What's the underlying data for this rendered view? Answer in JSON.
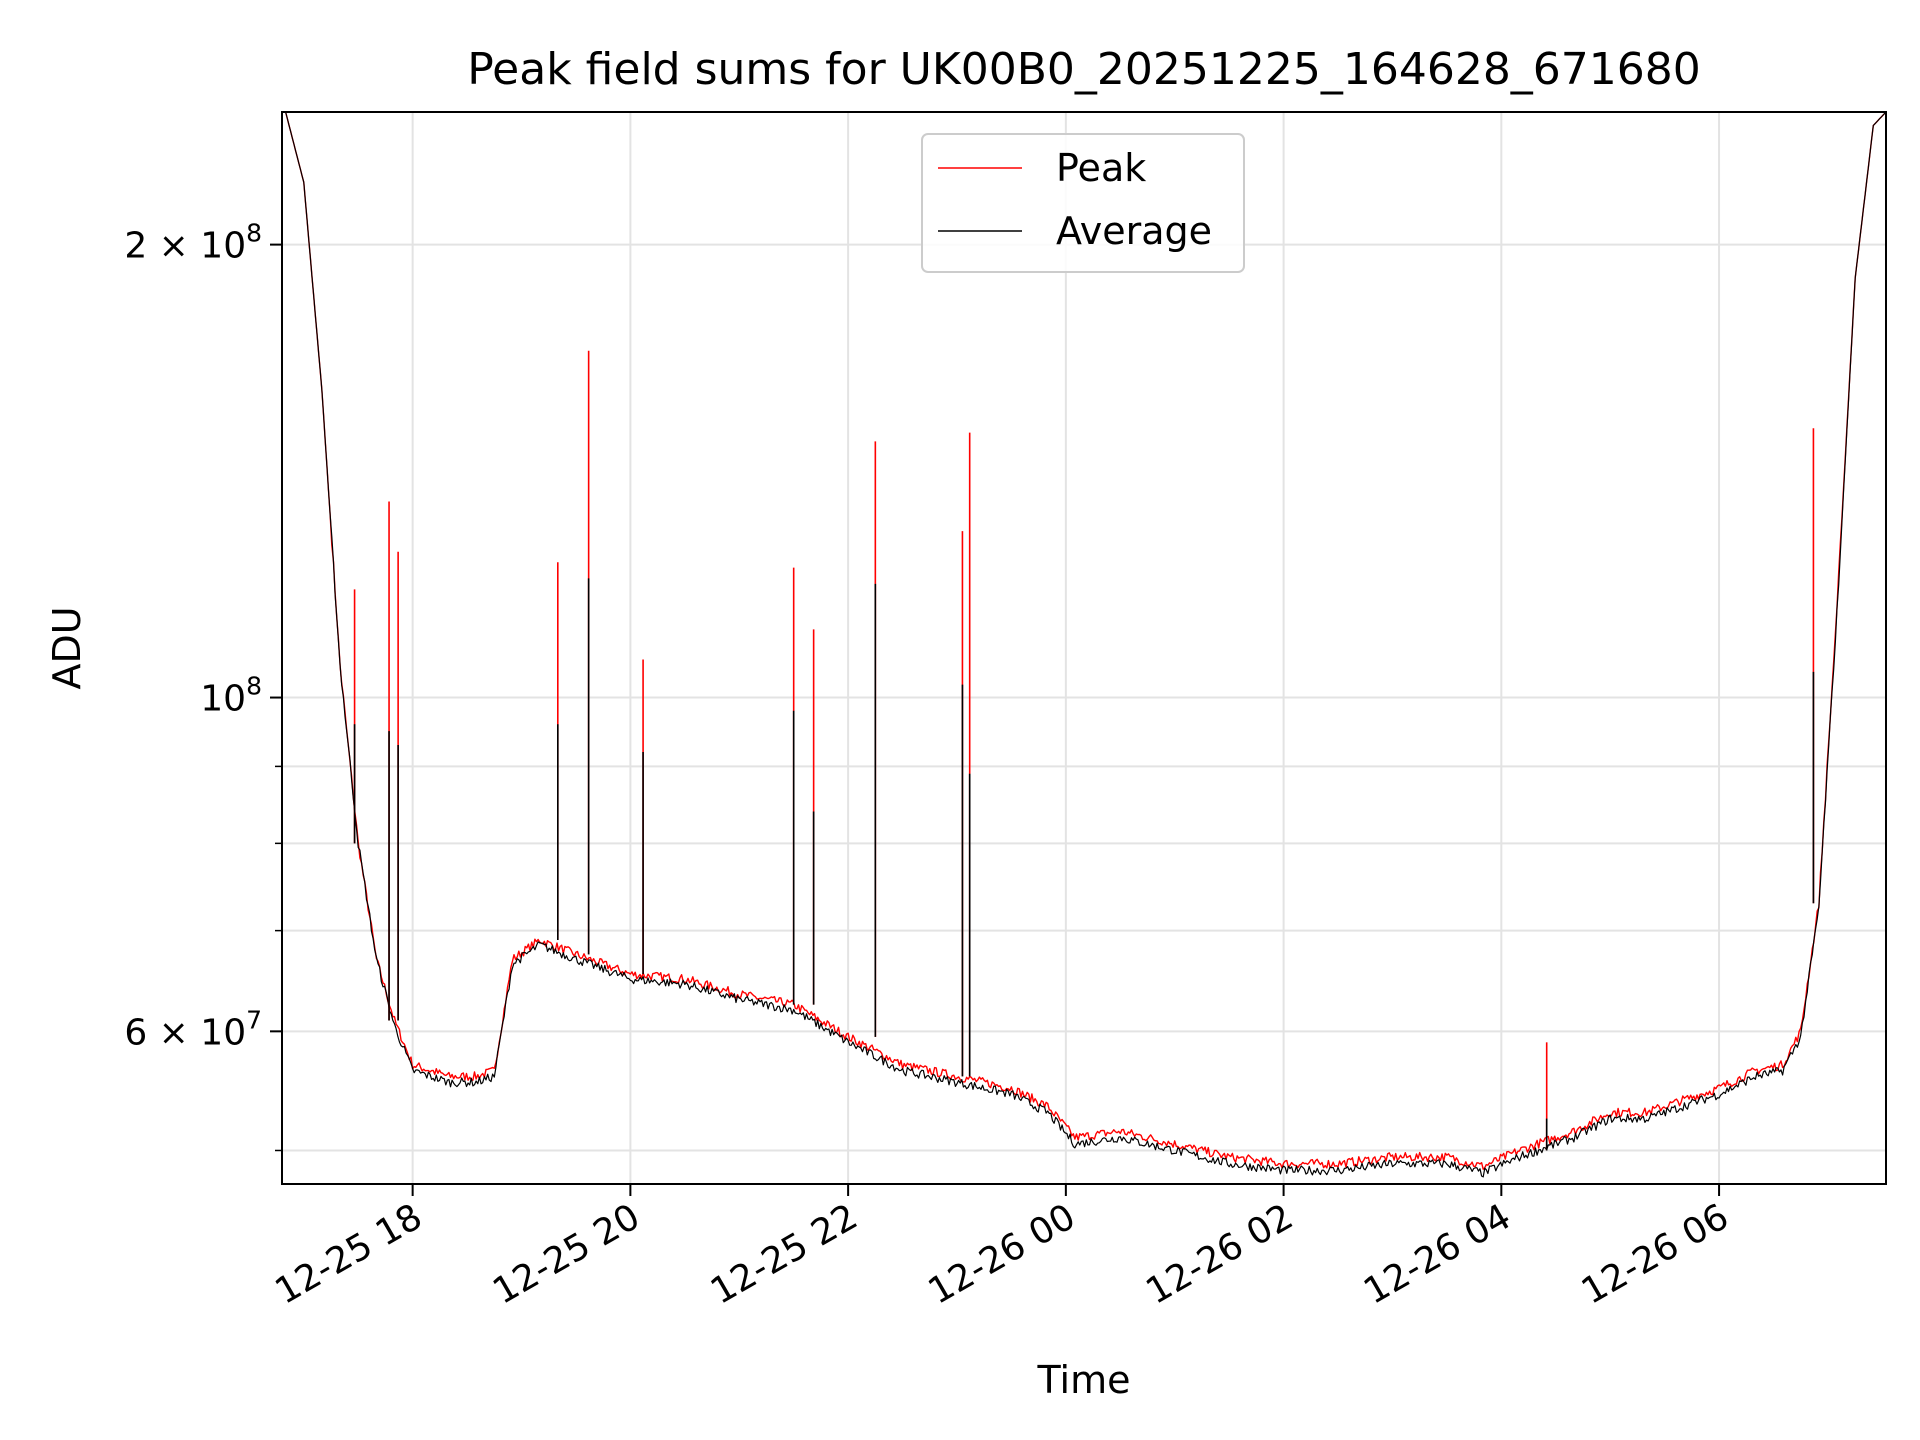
{
  "chart_data": {
    "type": "line",
    "title": "Peak field sums for UK00B0_20251225_164628_671680",
    "xlabel": "Time",
    "ylabel": "ADU",
    "yscale": "log",
    "ylim": [
      47500000,
      245000000
    ],
    "xlim": [
      "2025-12-25T16:48",
      "2025-12-26T07:32"
    ],
    "grid": true,
    "legend_position": "top-center",
    "x_ticks": [
      {
        "x": "2025-12-25T18:00",
        "label": "12-25 18"
      },
      {
        "x": "2025-12-25T20:00",
        "label": "12-25 20"
      },
      {
        "x": "2025-12-25T22:00",
        "label": "12-25 22"
      },
      {
        "x": "2025-12-26T00:00",
        "label": "12-26 00"
      },
      {
        "x": "2025-12-26T02:00",
        "label": "12-26 02"
      },
      {
        "x": "2025-12-26T04:00",
        "label": "12-26 04"
      },
      {
        "x": "2025-12-26T06:00",
        "label": "12-26 06"
      }
    ],
    "y_ticks_major": [
      {
        "value": 60000000,
        "label": "6 × 10",
        "exp": "7"
      },
      {
        "value": 100000000,
        "label": "10",
        "exp": "8"
      },
      {
        "value": 200000000,
        "label": "2 × 10",
        "exp": "8"
      }
    ],
    "y_ticks_minor": [
      50000000,
      70000000,
      80000000,
      90000000
    ],
    "series": [
      {
        "name": "Peak",
        "color": "#ff0000",
        "x": [
          "2025-12-25T16:50",
          "2025-12-25T17:00",
          "2025-12-25T17:10",
          "2025-12-25T17:20",
          "2025-12-25T17:30",
          "2025-12-25T17:40",
          "2025-12-25T17:50",
          "2025-12-25T18:00",
          "2025-12-25T18:20",
          "2025-12-25T18:35",
          "2025-12-25T18:45",
          "2025-12-25T18:55",
          "2025-12-25T19:10",
          "2025-12-25T19:30",
          "2025-12-25T20:00",
          "2025-12-25T20:30",
          "2025-12-25T21:00",
          "2025-12-25T21:30",
          "2025-12-25T22:00",
          "2025-12-25T22:30",
          "2025-12-25T23:00",
          "2025-12-25T23:30",
          "2025-12-25T23:50",
          "2025-12-26T00:05",
          "2025-12-26T00:30",
          "2025-12-26T01:00",
          "2025-12-26T01:30",
          "2025-12-26T02:00",
          "2025-12-26T02:30",
          "2025-12-26T03:00",
          "2025-12-26T03:30",
          "2025-12-26T03:50",
          "2025-12-26T04:10",
          "2025-12-26T04:40",
          "2025-12-26T05:00",
          "2025-12-26T05:20",
          "2025-12-26T05:40",
          "2025-12-26T06:00",
          "2025-12-26T06:20",
          "2025-12-26T06:35",
          "2025-12-26T06:45",
          "2025-12-26T06:55",
          "2025-12-26T07:05",
          "2025-12-26T07:15",
          "2025-12-26T07:25",
          "2025-12-26T07:32"
        ],
        "y": [
          245000000,
          220000000,
          160000000,
          105000000,
          80000000,
          67000000,
          61000000,
          57000000,
          56000000,
          56000000,
          56500000,
          67000000,
          69000000,
          67500000,
          65500000,
          65000000,
          63500000,
          62500000,
          59500000,
          57000000,
          56000000,
          55000000,
          53500000,
          51000000,
          51500000,
          50500000,
          49500000,
          49000000,
          49000000,
          49500000,
          49500000,
          48800000,
          50000000,
          51500000,
          53000000,
          53000000,
          54000000,
          55000000,
          56500000,
          57000000,
          60000000,
          73000000,
          115000000,
          190000000,
          240000000,
          245000000
        ]
      },
      {
        "name": "Average",
        "color": "#000000",
        "x": [
          "2025-12-25T16:50",
          "2025-12-25T17:00",
          "2025-12-25T17:10",
          "2025-12-25T17:20",
          "2025-12-25T17:30",
          "2025-12-25T17:40",
          "2025-12-25T17:50",
          "2025-12-25T18:00",
          "2025-12-25T18:20",
          "2025-12-25T18:35",
          "2025-12-25T18:45",
          "2025-12-25T18:55",
          "2025-12-25T19:10",
          "2025-12-25T19:30",
          "2025-12-25T20:00",
          "2025-12-25T20:30",
          "2025-12-25T21:00",
          "2025-12-25T21:30",
          "2025-12-25T22:00",
          "2025-12-25T22:30",
          "2025-12-25T23:00",
          "2025-12-25T23:30",
          "2025-12-25T23:50",
          "2025-12-26T00:05",
          "2025-12-26T00:30",
          "2025-12-26T01:00",
          "2025-12-26T01:30",
          "2025-12-26T02:00",
          "2025-12-26T02:30",
          "2025-12-26T03:00",
          "2025-12-26T03:30",
          "2025-12-26T03:50",
          "2025-12-26T04:10",
          "2025-12-26T04:40",
          "2025-12-26T05:00",
          "2025-12-26T05:20",
          "2025-12-26T05:40",
          "2025-12-26T06:00",
          "2025-12-26T06:20",
          "2025-12-26T06:35",
          "2025-12-26T06:45",
          "2025-12-26T06:55",
          "2025-12-26T07:05",
          "2025-12-26T07:15",
          "2025-12-26T07:25",
          "2025-12-26T07:32"
        ],
        "y": [
          245000000,
          220000000,
          160000000,
          105000000,
          80000000,
          67000000,
          60500000,
          56500000,
          55500000,
          55500000,
          56000000,
          66500000,
          68500000,
          67000000,
          65000000,
          64500000,
          63000000,
          62000000,
          59000000,
          56500000,
          55500000,
          54500000,
          53000000,
          50500000,
          51000000,
          50000000,
          49000000,
          48500000,
          48500000,
          49000000,
          49000000,
          48300000,
          49500000,
          51000000,
          52500000,
          52500000,
          53500000,
          54500000,
          56000000,
          56500000,
          59500000,
          72500000,
          114000000,
          190000000,
          240000000,
          245000000
        ]
      }
    ],
    "spikes": [
      {
        "x": "2025-12-25T17:28",
        "peak": 118000000,
        "average": 96000000
      },
      {
        "x": "2025-12-25T17:47",
        "peak": 135000000,
        "average": 95000000
      },
      {
        "x": "2025-12-25T17:52",
        "peak": 125000000,
        "average": 93000000
      },
      {
        "x": "2025-12-25T19:20",
        "peak": 123000000,
        "average": 96000000
      },
      {
        "x": "2025-12-25T19:37",
        "peak": 170000000,
        "average": 120000000
      },
      {
        "x": "2025-12-25T20:07",
        "peak": 106000000,
        "average": 92000000
      },
      {
        "x": "2025-12-25T21:30",
        "peak": 122000000,
        "average": 98000000
      },
      {
        "x": "2025-12-25T21:41",
        "peak": 111000000,
        "average": 84000000
      },
      {
        "x": "2025-12-25T22:15",
        "peak": 148000000,
        "average": 119000000
      },
      {
        "x": "2025-12-25T23:03",
        "peak": 129000000,
        "average": 102000000
      },
      {
        "x": "2025-12-25T23:07",
        "peak": 150000000,
        "average": 89000000
      },
      {
        "x": "2025-12-26T04:25",
        "peak": 59000000,
        "average": 52500000
      },
      {
        "x": "2025-12-26T06:52",
        "peak": 151000000,
        "average": 104000000
      }
    ]
  }
}
